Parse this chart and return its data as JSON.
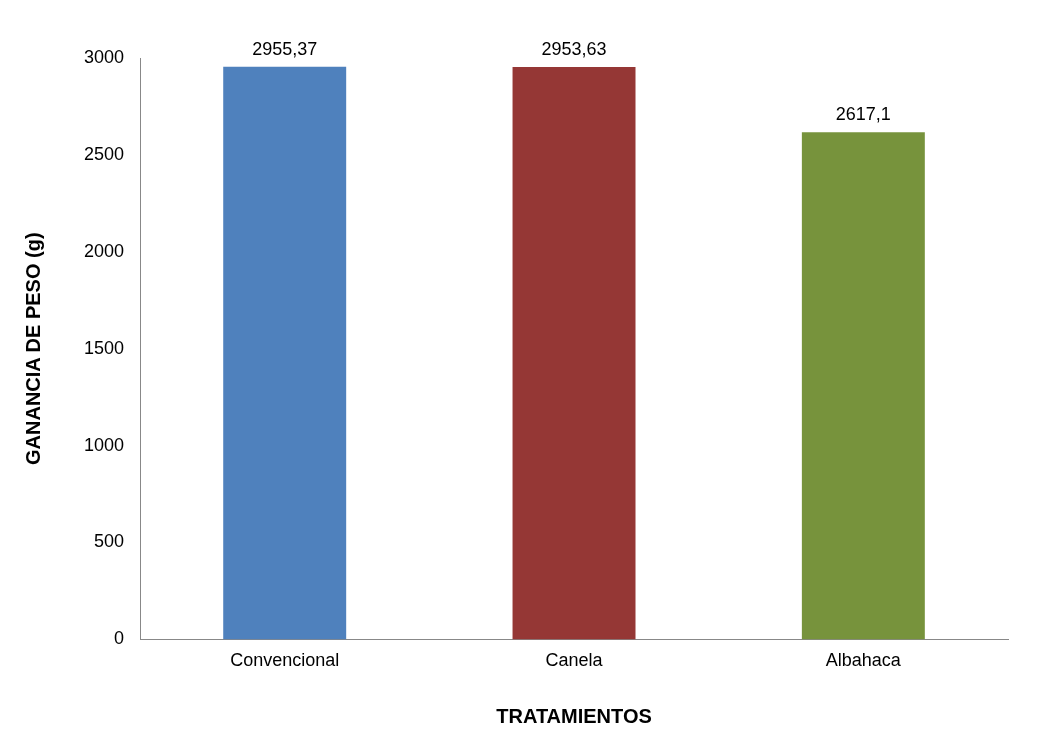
{
  "chart_data": {
    "type": "bar",
    "xlabel": "TRATAMIENTOS",
    "ylabel": "GANANCIA DE PESO (g)",
    "categories": [
      "Convencional",
      "Canela",
      "Albahaca"
    ],
    "values": [
      2955.37,
      2953.63,
      2617.1
    ],
    "colors": [
      "#4f81bd",
      "#953735",
      "#77933c"
    ],
    "value_labels": [
      "2955,37",
      "2953,63",
      "2617,1"
    ],
    "ylim": [
      0,
      3000
    ],
    "yticks": [
      0,
      500,
      1000,
      1500,
      2000,
      2500,
      3000
    ]
  }
}
